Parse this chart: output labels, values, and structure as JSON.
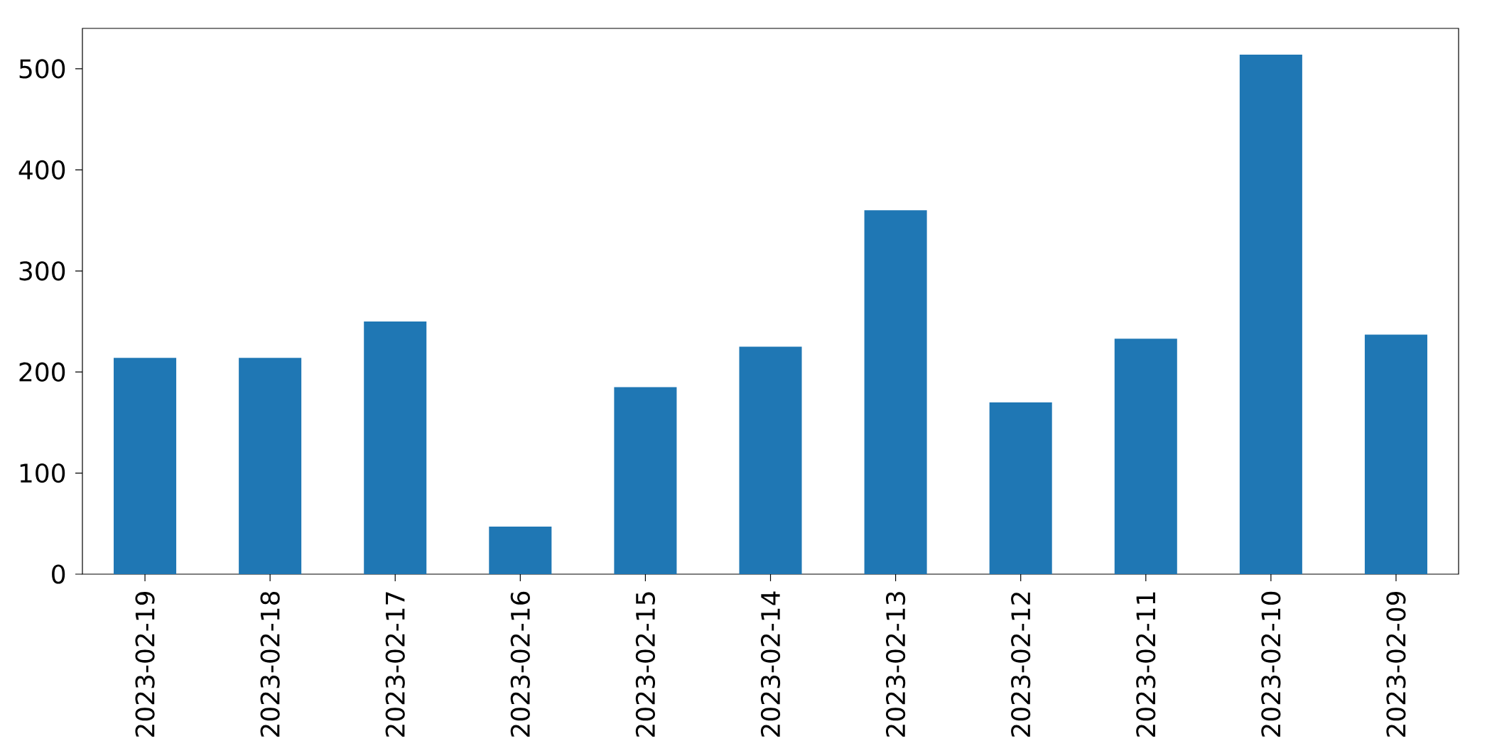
{
  "chart_data": {
    "type": "bar",
    "categories": [
      "2023-02-19",
      "2023-02-18",
      "2023-02-17",
      "2023-02-16",
      "2023-02-15",
      "2023-02-14",
      "2023-02-13",
      "2023-02-12",
      "2023-02-11",
      "2023-02-10",
      "2023-02-09"
    ],
    "values": [
      214,
      214,
      250,
      47,
      185,
      225,
      360,
      170,
      233,
      514,
      237
    ],
    "color": "#1f77b4",
    "ylim": [
      0,
      540
    ],
    "yticks": [
      0,
      100,
      200,
      300,
      400,
      500
    ],
    "grid": false
  }
}
